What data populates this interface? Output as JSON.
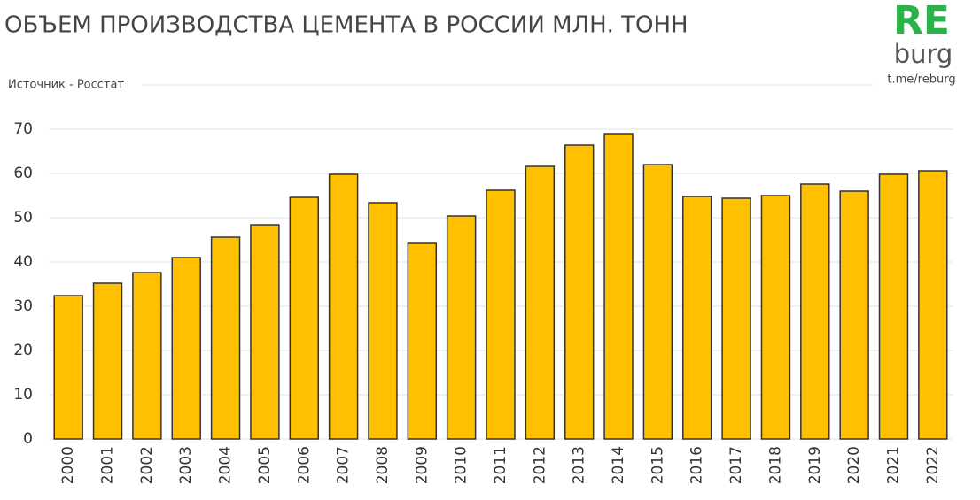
{
  "chart_data": {
    "type": "bar",
    "title": "ОБЪЕМ ПРОИЗВОДСТВА ЦЕМЕНТА В РОССИИ МЛН. ТОНН",
    "source": "Источник - Росстат",
    "brand": {
      "top": "RE",
      "bottom": "burg",
      "link": "t.me/reburg"
    },
    "categories": [
      "2000",
      "2001",
      "2002",
      "2003",
      "2004",
      "2005",
      "2006",
      "2007",
      "2008",
      "2009",
      "2010",
      "2011",
      "2012",
      "2013",
      "2014",
      "2015",
      "2016",
      "2017",
      "2018",
      "2019",
      "2020",
      "2021",
      "2022"
    ],
    "values": [
      32.4,
      35.2,
      37.6,
      41,
      45.6,
      48.4,
      54.6,
      59.8,
      53.4,
      44.2,
      50.4,
      56.2,
      61.6,
      66.4,
      69,
      62,
      54.8,
      54.4,
      55,
      57.6,
      56,
      59.8,
      60.6
    ],
    "color": "#ffc000",
    "ylim": [
      0,
      70
    ],
    "yticks": [
      0,
      10,
      20,
      30,
      40,
      50,
      60,
      70
    ],
    "grid": true
  }
}
